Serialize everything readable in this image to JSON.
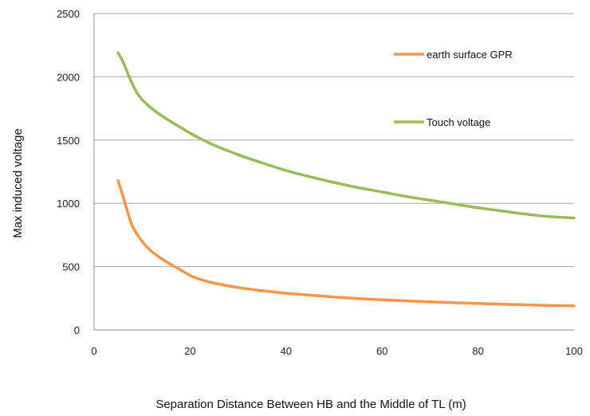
{
  "chart_data": {
    "type": "line",
    "title": "",
    "xlabel": "Separation Distance Between HB and the Middle of TL (m)",
    "ylabel": "Max induced voltage",
    "xlim": [
      0,
      100
    ],
    "ylim": [
      0,
      2500
    ],
    "xticks": [
      0,
      20,
      40,
      60,
      80,
      100
    ],
    "yticks": [
      0,
      500,
      1000,
      1500,
      2000,
      2500
    ],
    "grid": "horizontal",
    "legend_position": "top-right",
    "series": [
      {
        "name": "earth surface GPR",
        "color": "#f79646",
        "points": [
          [
            5,
            1180
          ],
          [
            6,
            1060
          ],
          [
            7,
            930
          ],
          [
            8,
            820
          ],
          [
            10,
            700
          ],
          [
            12,
            620
          ],
          [
            15,
            540
          ],
          [
            18,
            475
          ],
          [
            20,
            430
          ],
          [
            22,
            400
          ],
          [
            25,
            370
          ],
          [
            30,
            335
          ],
          [
            35,
            310
          ],
          [
            40,
            290
          ],
          [
            45,
            275
          ],
          [
            50,
            260
          ],
          [
            55,
            248
          ],
          [
            60,
            238
          ],
          [
            65,
            230
          ],
          [
            70,
            222
          ],
          [
            75,
            215
          ],
          [
            80,
            209
          ],
          [
            85,
            203
          ],
          [
            90,
            198
          ],
          [
            95,
            193
          ],
          [
            100,
            190
          ]
        ]
      },
      {
        "name": "Touch voltage",
        "color": "#9bbb59",
        "points": [
          [
            5,
            2190
          ],
          [
            6,
            2120
          ],
          [
            7,
            2030
          ],
          [
            8,
            1940
          ],
          [
            9,
            1870
          ],
          [
            10,
            1820
          ],
          [
            12,
            1750
          ],
          [
            15,
            1670
          ],
          [
            18,
            1600
          ],
          [
            20,
            1555
          ],
          [
            22,
            1515
          ],
          [
            25,
            1460
          ],
          [
            30,
            1385
          ],
          [
            35,
            1320
          ],
          [
            40,
            1260
          ],
          [
            45,
            1210
          ],
          [
            50,
            1165
          ],
          [
            55,
            1125
          ],
          [
            60,
            1090
          ],
          [
            65,
            1055
          ],
          [
            70,
            1025
          ],
          [
            75,
            995
          ],
          [
            80,
            965
          ],
          [
            85,
            940
          ],
          [
            90,
            915
          ],
          [
            95,
            895
          ],
          [
            100,
            885
          ]
        ]
      }
    ]
  }
}
